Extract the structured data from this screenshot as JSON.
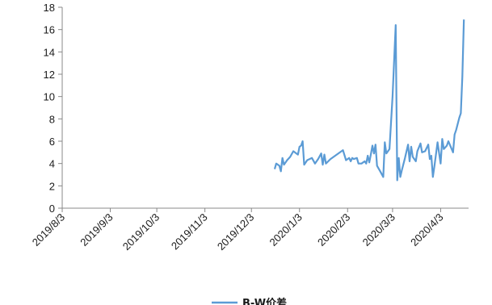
{
  "chart_data": {
    "type": "line",
    "title": "",
    "xlabel": "",
    "ylabel": "",
    "xlim": [
      "2019-08-03",
      "2020-04-21"
    ],
    "ylim": [
      0,
      18
    ],
    "y_ticks": [
      0,
      2,
      4,
      6,
      8,
      10,
      12,
      14,
      16,
      18
    ],
    "x_ticks": [
      "2019/8/3",
      "2019/9/3",
      "2019/10/3",
      "2019/11/3",
      "2019/12/3",
      "2020/1/3",
      "2020/2/3",
      "2020/3/3",
      "2020/4/3"
    ],
    "grid": false,
    "legend_position": "bottom",
    "colors": {
      "series": "#5b9bd5",
      "axis": "#888888"
    },
    "series": [
      {
        "name": "B-W价差",
        "points": [
          [
            "2019-12-18",
            3.5
          ],
          [
            "2019-12-19",
            4.0
          ],
          [
            "2019-12-21",
            3.8
          ],
          [
            "2019-12-22",
            3.3
          ],
          [
            "2019-12-23",
            4.5
          ],
          [
            "2019-12-24",
            3.9
          ],
          [
            "2019-12-26",
            4.3
          ],
          [
            "2019-12-28",
            4.6
          ],
          [
            "2019-12-30",
            5.1
          ],
          [
            "2020-01-01",
            4.9
          ],
          [
            "2020-01-02",
            4.8
          ],
          [
            "2020-01-03",
            5.5
          ],
          [
            "2020-01-04",
            5.6
          ],
          [
            "2020-01-05",
            6.0
          ],
          [
            "2020-01-06",
            3.9
          ],
          [
            "2020-01-08",
            4.3
          ],
          [
            "2020-01-11",
            4.5
          ],
          [
            "2020-01-13",
            4.0
          ],
          [
            "2020-01-15",
            4.4
          ],
          [
            "2020-01-17",
            4.9
          ],
          [
            "2020-01-18",
            3.9
          ],
          [
            "2020-01-19",
            4.8
          ],
          [
            "2020-01-20",
            4.0
          ],
          [
            "2020-01-23",
            4.4
          ],
          [
            "2020-01-31",
            5.2
          ],
          [
            "2020-02-02",
            4.3
          ],
          [
            "2020-02-04",
            4.5
          ],
          [
            "2020-02-05",
            4.2
          ],
          [
            "2020-02-06",
            4.5
          ],
          [
            "2020-02-07",
            4.4
          ],
          [
            "2020-02-09",
            4.5
          ],
          [
            "2020-02-10",
            4.0
          ],
          [
            "2020-02-12",
            4.0
          ],
          [
            "2020-02-14",
            4.2
          ],
          [
            "2020-02-15",
            4.0
          ],
          [
            "2020-02-16",
            4.7
          ],
          [
            "2020-02-17",
            4.1
          ],
          [
            "2020-02-18",
            4.8
          ],
          [
            "2020-02-19",
            5.6
          ],
          [
            "2020-02-20",
            4.9
          ],
          [
            "2020-02-21",
            5.7
          ],
          [
            "2020-02-22",
            3.8
          ],
          [
            "2020-02-24",
            3.3
          ],
          [
            "2020-02-26",
            2.8
          ],
          [
            "2020-02-27",
            5.9
          ],
          [
            "2020-02-28",
            4.9
          ],
          [
            "2020-03-01",
            5.3
          ],
          [
            "2020-03-03",
            10.0
          ],
          [
            "2020-03-05",
            16.4
          ],
          [
            "2020-03-06",
            2.5
          ],
          [
            "2020-03-07",
            4.5
          ],
          [
            "2020-03-08",
            2.8
          ],
          [
            "2020-03-09",
            3.4
          ],
          [
            "2020-03-11",
            4.5
          ],
          [
            "2020-03-13",
            5.7
          ],
          [
            "2020-03-14",
            4.2
          ],
          [
            "2020-03-15",
            5.5
          ],
          [
            "2020-03-16",
            4.6
          ],
          [
            "2020-03-18",
            4.2
          ],
          [
            "2020-03-19",
            5.1
          ],
          [
            "2020-03-21",
            5.8
          ],
          [
            "2020-03-22",
            5.0
          ],
          [
            "2020-03-24",
            5.1
          ],
          [
            "2020-03-26",
            5.7
          ],
          [
            "2020-03-27",
            4.4
          ],
          [
            "2020-03-28",
            4.7
          ],
          [
            "2020-03-29",
            2.8
          ],
          [
            "2020-03-30",
            3.8
          ],
          [
            "2020-04-01",
            5.9
          ],
          [
            "2020-04-03",
            4.0
          ],
          [
            "2020-04-04",
            6.2
          ],
          [
            "2020-04-05",
            5.3
          ],
          [
            "2020-04-07",
            5.6
          ],
          [
            "2020-04-08",
            6.0
          ],
          [
            "2020-04-11",
            5.0
          ],
          [
            "2020-04-12",
            6.6
          ],
          [
            "2020-04-13",
            7.0
          ],
          [
            "2020-04-15",
            8.1
          ],
          [
            "2020-04-16",
            8.5
          ],
          [
            "2020-04-17",
            11.8
          ],
          [
            "2020-04-18",
            16.9
          ]
        ]
      }
    ]
  }
}
